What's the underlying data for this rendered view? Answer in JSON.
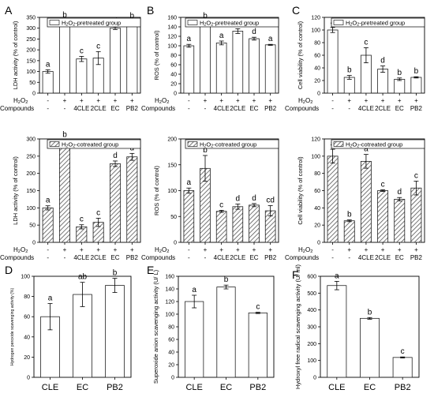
{
  "figure": {
    "x_row_h2o2": "H",
    "x_row_h2o2_sub": "2",
    "x_row_h2o2_o": "O",
    "x_row_h2o2_sub2": "2",
    "x_row_compounds": "Compounds",
    "top_categories": [
      "-",
      "+",
      "+",
      "+",
      "+",
      "+"
    ],
    "top_compounds": [
      "-",
      "-",
      "4CLE",
      "2CLE",
      "EC",
      "PB2"
    ]
  },
  "chart_data": [
    {
      "panel": "A",
      "type": "bar",
      "row": "pretreated",
      "legend": "H2O2-pretreated group",
      "ylabel": "LDH activity (% of control)",
      "ylim": [
        0,
        350
      ],
      "yticks": [
        0,
        50,
        100,
        150,
        200,
        250,
        300,
        350
      ],
      "values": [
        100,
        328,
        158,
        162,
        300,
        322
      ],
      "errors": [
        8,
        8,
        12,
        30,
        6,
        10
      ],
      "letters": [
        "a",
        "b",
        "c",
        "c",
        "d",
        "b"
      ]
    },
    {
      "panel": "B",
      "type": "bar",
      "row": "pretreated",
      "legend": "H2O2-pretreated group",
      "ylabel": "ROS (% of control)",
      "ylim": [
        0,
        160
      ],
      "yticks": [
        0,
        20,
        40,
        60,
        80,
        100,
        120,
        140,
        160
      ],
      "values": [
        100,
        148,
        106,
        131,
        115,
        102
      ],
      "errors": [
        3,
        4,
        4,
        5,
        3,
        1
      ],
      "letters": [
        "a",
        "b",
        "a",
        "c",
        "d",
        "a"
      ]
    },
    {
      "panel": "C",
      "type": "bar",
      "row": "pretreated",
      "legend": "H2O2-pretreated group",
      "ylabel": "Cell viability (% of control)",
      "ylim": [
        0,
        120
      ],
      "yticks": [
        0,
        20,
        40,
        60,
        80,
        100,
        120
      ],
      "values": [
        100,
        25,
        60,
        38,
        22,
        25
      ],
      "errors": [
        4,
        3,
        12,
        5,
        2,
        1
      ],
      "letters": [
        "a",
        "b",
        "c",
        "d",
        "b",
        "b"
      ]
    },
    {
      "panel": "",
      "type": "bar",
      "row": "cotreated",
      "legend": "H2O2-cotreated group",
      "ylabel": "LDH activity (% of control)",
      "ylim": [
        0,
        300
      ],
      "yticks": [
        0,
        50,
        100,
        150,
        200,
        250,
        300
      ],
      "values": [
        100,
        287,
        45,
        58,
        228,
        248
      ],
      "errors": [
        6,
        10,
        6,
        12,
        8,
        10
      ],
      "letters": [
        "a",
        "b",
        "c",
        "c",
        "d",
        "d"
      ]
    },
    {
      "panel": "",
      "type": "bar",
      "row": "cotreated",
      "legend": "H2O2-cotreated group",
      "ylabel": "ROS (% of control)",
      "ylim": [
        0,
        200
      ],
      "yticks": [
        0,
        50,
        100,
        150,
        200
      ],
      "values": [
        100,
        143,
        60,
        69,
        72,
        61
      ],
      "errors": [
        5,
        25,
        2,
        5,
        3,
        10
      ],
      "letters": [
        "a",
        "b",
        "c",
        "d",
        "d",
        "cd"
      ]
    },
    {
      "panel": "",
      "type": "bar",
      "row": "cotreated",
      "legend": "H2O2-cotreated group",
      "ylabel": "Cell viability (% of control)",
      "ylim": [
        0,
        120
      ],
      "yticks": [
        0,
        20,
        40,
        60,
        80,
        100,
        120
      ],
      "values": [
        100,
        25,
        94,
        60,
        50,
        63
      ],
      "errors": [
        8,
        1,
        8,
        1,
        2,
        8
      ],
      "letters": [
        "a",
        "b",
        "a",
        "c",
        "d",
        "c"
      ]
    },
    {
      "panel": "D",
      "type": "bar",
      "row": "bottom",
      "ylabel": "Hydrogen peroxide scavenging activity (%)",
      "categories": [
        "CLE",
        "EC",
        "PB2"
      ],
      "ylim": [
        0,
        100
      ],
      "yticks": [
        0,
        20,
        40,
        60,
        80,
        100
      ],
      "values": [
        60,
        82,
        91
      ],
      "errors": [
        13,
        12,
        7
      ],
      "letters": [
        "a",
        "ab",
        "b"
      ]
    },
    {
      "panel": "E",
      "type": "bar",
      "row": "bottom",
      "ylabel": "Superoxide anion scavenging activity (U/ L)",
      "categories": [
        "CLE",
        "EC",
        "PB2"
      ],
      "ylim": [
        0,
        160
      ],
      "yticks": [
        0,
        20,
        40,
        60,
        80,
        100,
        120,
        140,
        160
      ],
      "values": [
        120,
        143,
        102
      ],
      "errors": [
        10,
        3,
        1
      ],
      "letters": [
        "a",
        "b",
        "c"
      ]
    },
    {
      "panel": "F",
      "type": "bar",
      "row": "bottom",
      "ylabel": "Hydroxyl free radical scavenging activity (U/ ml)",
      "categories": [
        "CLE",
        "EC",
        "PB2"
      ],
      "ylim": [
        0,
        600
      ],
      "yticks": [
        0,
        100,
        200,
        300,
        400,
        500,
        600
      ],
      "values": [
        545,
        350,
        118
      ],
      "errors": [
        25,
        5,
        3
      ],
      "letters": [
        "a",
        "b",
        "c"
      ]
    }
  ]
}
